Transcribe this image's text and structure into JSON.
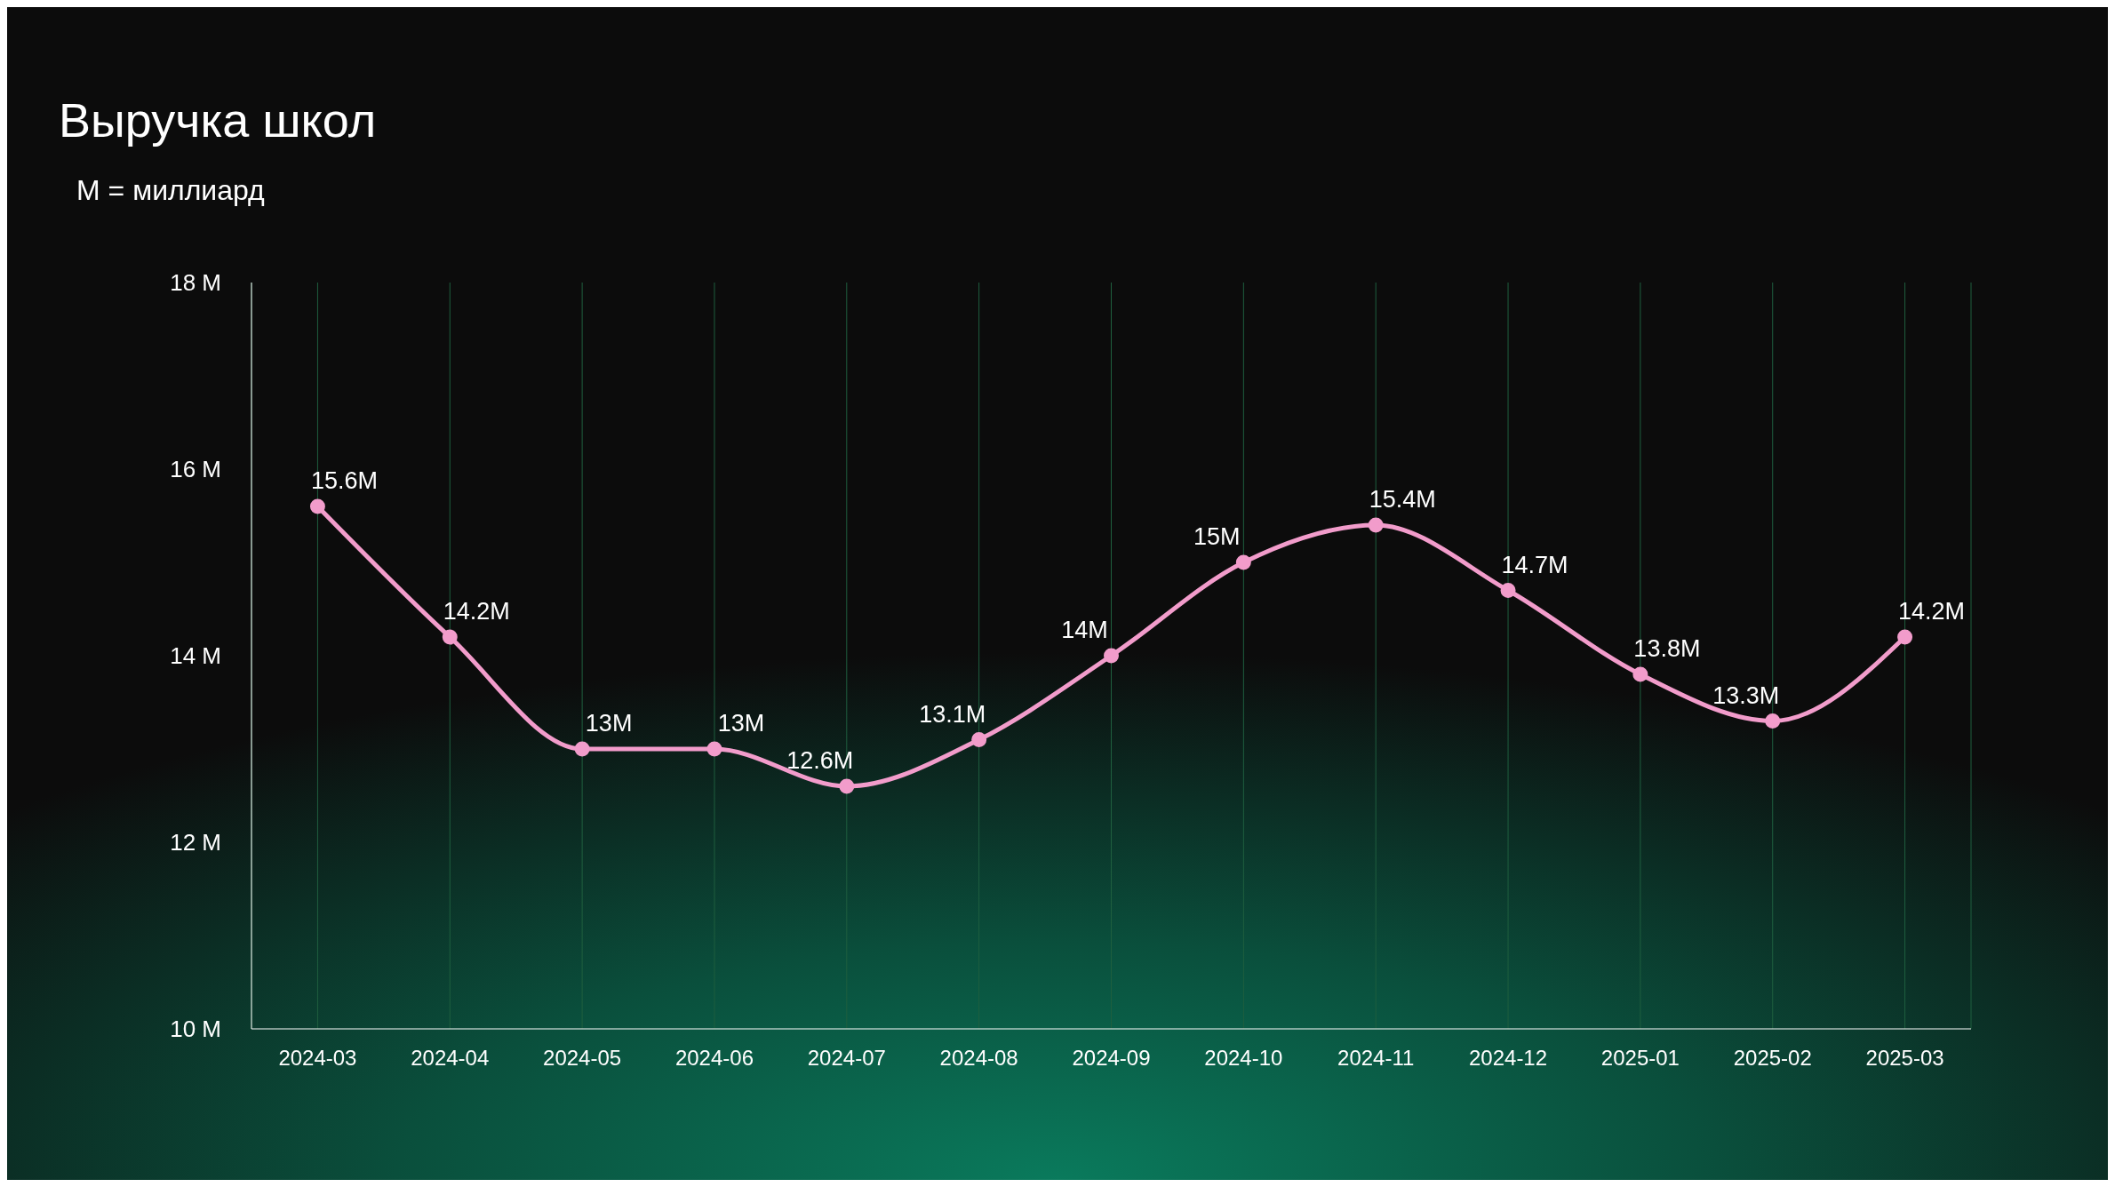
{
  "chart_data": {
    "type": "line",
    "title": "Выручка школ",
    "subtitle": "M = миллиард",
    "categories": [
      "2024-03",
      "2024-04",
      "2024-05",
      "2024-06",
      "2024-07",
      "2024-08",
      "2024-09",
      "2024-10",
      "2024-11",
      "2024-12",
      "2025-01",
      "2025-02",
      "2025-03"
    ],
    "series": [
      {
        "color": "#f29ccb",
        "values": [
          15.6,
          14.2,
          13,
          13,
          12.6,
          13.1,
          14,
          15,
          15.4,
          14.7,
          13.8,
          13.3,
          14.2
        ],
        "value_labels": [
          "15.6M",
          "14.2M",
          "13M",
          "13M",
          "12.6M",
          "13.1M",
          "14M",
          "15M",
          "15.4M",
          "14.7M",
          "13.8M",
          "13.3M",
          "14.2M"
        ]
      }
    ],
    "ylim": [
      10,
      18
    ],
    "yticks": [
      {
        "value": 10,
        "label": "10 M"
      },
      {
        "value": 12,
        "label": "12 M"
      },
      {
        "value": 14,
        "label": "14 M"
      },
      {
        "value": 16,
        "label": "16 M"
      },
      {
        "value": 18,
        "label": "18 M"
      }
    ],
    "grid": "x",
    "marker": "circle",
    "line_style": "solid",
    "legend": false
  }
}
